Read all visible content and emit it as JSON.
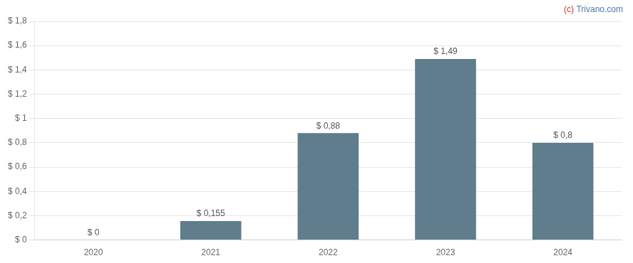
{
  "chart_data": {
    "type": "bar",
    "categories": [
      "2020",
      "2021",
      "2022",
      "2023",
      "2024"
    ],
    "values": [
      0,
      0.155,
      0.88,
      1.49,
      0.8
    ],
    "value_labels": [
      "$ 0",
      "$ 0,155",
      "$ 0,88",
      "$ 1,49",
      "$ 0,8"
    ],
    "data_labels": true,
    "color": "#5f7d8c",
    "ylim": [
      0,
      1.8
    ],
    "yticks": [
      {
        "value": 0,
        "label": "$ 0"
      },
      {
        "value": 0.2,
        "label": "$ 0,2"
      },
      {
        "value": 0.4,
        "label": "$ 0,4"
      },
      {
        "value": 0.6,
        "label": "$ 0,6"
      },
      {
        "value": 0.8,
        "label": "$ 0,8"
      },
      {
        "value": 1.0,
        "label": "$ 1"
      },
      {
        "value": 1.2,
        "label": "$ 1,2"
      },
      {
        "value": 1.4,
        "label": "$ 1,4"
      },
      {
        "value": 1.6,
        "label": "$ 1,6"
      },
      {
        "value": 1.8,
        "label": "$ 1,8"
      }
    ],
    "grid": true,
    "annotations": [
      {
        "text": "(c) ",
        "color": "#c0392b"
      },
      {
        "text": "Trivano.com",
        "color": "#4a7aaa"
      }
    ]
  }
}
